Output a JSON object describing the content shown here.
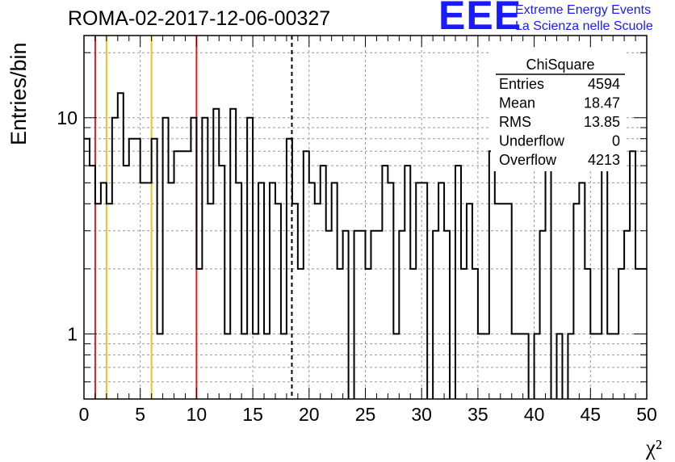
{
  "header": {
    "run_title": "ROMA-02-2017-12-06-00327"
  },
  "logo": {
    "mark": "EEE",
    "line1": "Extreme Energy Events",
    "line2": "La Scienza nelle Scuole",
    "color": "#1a1aff"
  },
  "stats_box": {
    "title": "ChiSquare",
    "rows": [
      {
        "label": "Entries",
        "value": "4594"
      },
      {
        "label": "Mean",
        "value": "18.47"
      },
      {
        "label": "RMS",
        "value": "13.85"
      },
      {
        "label": "Underflow",
        "value": "0"
      },
      {
        "label": "Overflow",
        "value": "4213"
      }
    ]
  },
  "chart_data": {
    "type": "histogram",
    "xlabel": "χ²",
    "ylabel": "Entries/bin",
    "log_y": true,
    "grid": true,
    "xlim": [
      0,
      50
    ],
    "ylim": [
      0.5,
      24
    ],
    "x_ticks": [
      0,
      5,
      10,
      15,
      20,
      25,
      30,
      35,
      40,
      45,
      50
    ],
    "y_ticks": [
      1,
      10
    ],
    "bin_width": 0.5,
    "bin_start": 0,
    "values": [
      8,
      6,
      4,
      5,
      4,
      10,
      13,
      6,
      8,
      8,
      5,
      5,
      8,
      1,
      10,
      5,
      7,
      7,
      7,
      10,
      2,
      10,
      4,
      11,
      6,
      1,
      11,
      5,
      1,
      10,
      1,
      5,
      1,
      5,
      4,
      1,
      8,
      4,
      2,
      7,
      5,
      4,
      6,
      3,
      5,
      2,
      3,
      0,
      3,
      3,
      2,
      3,
      3,
      6,
      5,
      1,
      3,
      6,
      2,
      5,
      5,
      0,
      3,
      5,
      3,
      0,
      6,
      2,
      4,
      2,
      1,
      1,
      7,
      4,
      4,
      4,
      1,
      1,
      1,
      0,
      1,
      3,
      6,
      0,
      1,
      0,
      1,
      4,
      5,
      2,
      1,
      1,
      7,
      1,
      1,
      2,
      3,
      7,
      2,
      2
    ],
    "vlines": [
      {
        "x": 1,
        "color": "#e0201a",
        "style": "solid"
      },
      {
        "x": 2,
        "color": "#f0c020",
        "style": "solid"
      },
      {
        "x": 6,
        "color": "#f0c020",
        "style": "solid"
      },
      {
        "x": 10,
        "color": "#e0201a",
        "style": "solid"
      },
      {
        "x": 18.47,
        "color": "#000000",
        "style": "dashed"
      }
    ]
  }
}
